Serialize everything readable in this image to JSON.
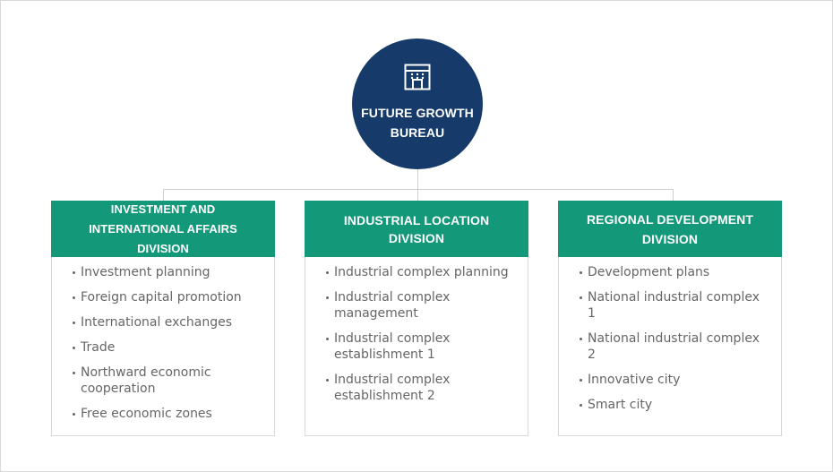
{
  "bureau": {
    "title": "FUTURE GROWTH BUREAU",
    "icon": "building-icon"
  },
  "divisions": [
    {
      "title": "INVESTMENT AND INTERNATIONAL AFFAIRS DIVISION",
      "items": [
        "Investment planning",
        "Foreign capital promotion",
        "International exchanges",
        "Trade",
        "Northward economic cooperation",
        "Free economic zones"
      ]
    },
    {
      "title": "INDUSTRIAL LOCATION DIVISION",
      "items": [
        "Industrial complex planning",
        "Industrial complex management",
        "Industrial complex establishment 1",
        "Industrial complex establishment 2"
      ]
    },
    {
      "title": "REGIONAL DEVELOPMENT DIVISION",
      "items": [
        "Development plans",
        "National industrial complex 1",
        "National industrial complex 2",
        "Innovative city",
        "Smart city"
      ]
    }
  ],
  "colors": {
    "bureau_bg": "#163b6b",
    "division_header_bg": "#139879",
    "text_muted": "#666666",
    "line": "#cfcfcf"
  }
}
